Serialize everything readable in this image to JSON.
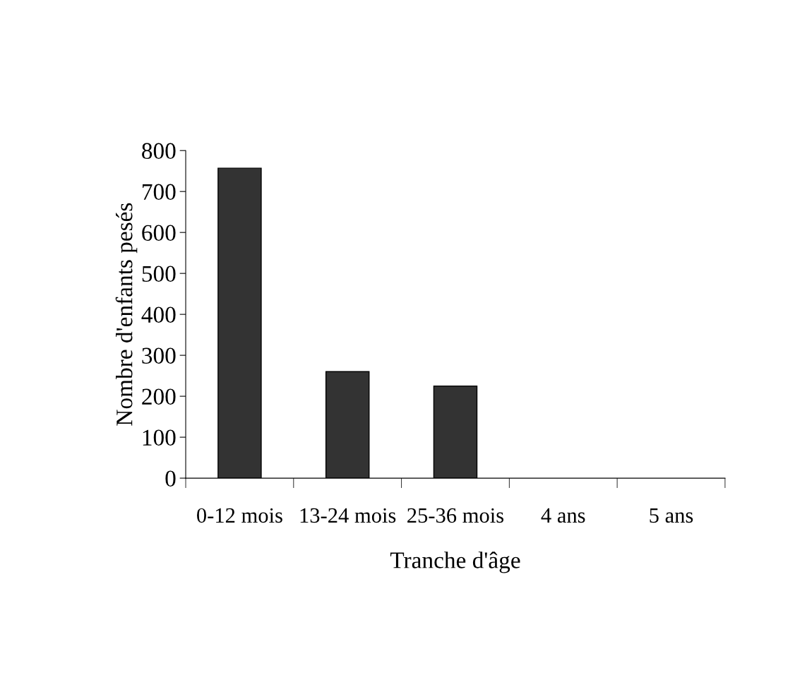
{
  "chart_data": {
    "type": "bar",
    "xlabel": "Tranche d'âge",
    "ylabel": "Nombre d'enfants pesés",
    "categories": [
      "0-12 mois",
      "13-24 mois",
      "25-36 mois",
      "4 ans",
      "5 ans"
    ],
    "values": [
      757,
      260,
      225,
      0,
      0
    ],
    "color": "#333333",
    "ylim": [
      0,
      800
    ],
    "yticks": [
      0,
      100,
      200,
      300,
      400,
      500,
      600,
      700,
      800
    ],
    "grid": false,
    "legend": false
  }
}
